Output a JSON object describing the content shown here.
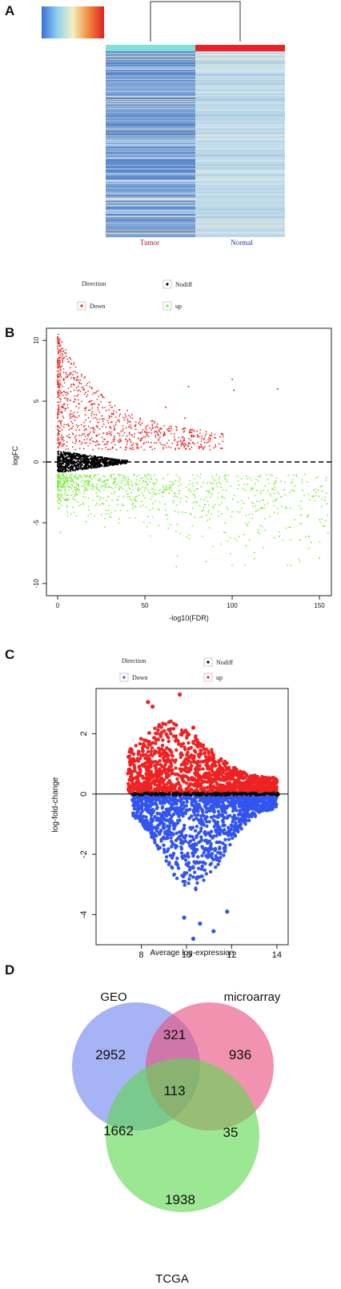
{
  "panels": {
    "a": {
      "letter": "A"
    },
    "b": {
      "letter": "B"
    },
    "c": {
      "letter": "C"
    },
    "d": {
      "letter": "D"
    }
  },
  "colors": {
    "tumor_bar": "#7fe0d8",
    "normal_bar": "#ee2222",
    "up_red": "#ee2222",
    "down_green": "#77ee33",
    "nodiff_black": "#000000",
    "down_blue": "#3355ee",
    "venn_geo": "#6f84ee",
    "venn_micro": "#e8507f",
    "venn_tcga": "#5fd84f"
  },
  "chart_data": [
    {
      "type": "heatmap",
      "panel": "A",
      "groups": [
        "Tumor",
        "Normal"
      ],
      "legend": {
        "title": "Direction",
        "items": [
          "Nodiff",
          "Down",
          "up"
        ]
      }
    },
    {
      "type": "scatter",
      "panel": "B",
      "xlabel": "-log10(FDR)",
      "ylabel": "logFC",
      "xlim": [
        0,
        155
      ],
      "ylim": [
        -11,
        11
      ],
      "xticks": [
        "0",
        "50",
        "100",
        "150"
      ],
      "yticks": [
        "10",
        "5",
        "0",
        "-5",
        "-10"
      ],
      "hline": 0,
      "series": [
        {
          "name": "up",
          "color": "#ee2222"
        },
        {
          "name": "Down",
          "color": "#77ee33"
        },
        {
          "name": "Nodiff",
          "color": "#000000"
        }
      ],
      "highlights": [
        {
          "x": 100,
          "y": 6.8
        },
        {
          "x": 126,
          "y": 6
        },
        {
          "x": 75,
          "y": 6.2
        },
        {
          "x": 101,
          "y": 5.9
        },
        {
          "x": 73,
          "y": 3.6
        },
        {
          "x": 62,
          "y": 4.5
        },
        {
          "x": 150,
          "y": -7.9
        },
        {
          "x": 153,
          "y": -5.3
        },
        {
          "x": 127,
          "y": -6.1
        },
        {
          "x": 108,
          "y": -6.9
        },
        {
          "x": 68,
          "y": -8.6
        },
        {
          "x": 85,
          "y": -8.2
        }
      ]
    },
    {
      "type": "scatter",
      "panel": "C",
      "legend": {
        "title": "Direction",
        "items": [
          "Nodiff",
          "Down",
          "up"
        ]
      },
      "xlabel": "Average log-expression",
      "ylabel": "log-fold-change",
      "xlim": [
        6,
        14.5
      ],
      "ylim": [
        -5,
        3.5
      ],
      "xticks": [
        "8",
        "10",
        "12",
        "14"
      ],
      "yticks": [
        "2",
        "0",
        "-2",
        "-4"
      ],
      "hline": 0,
      "series": [
        {
          "name": "up",
          "color": "#ee2222"
        },
        {
          "name": "Down",
          "color": "#3355ee"
        },
        {
          "name": "Nodiff",
          "color": "#000000"
        }
      ],
      "highlights": [
        {
          "x": 9.7,
          "y": 3.3
        },
        {
          "x": 8.3,
          "y": 3.05
        },
        {
          "x": 8.5,
          "y": 2.9
        },
        {
          "x": 10.3,
          "y": 2.2
        },
        {
          "x": 9.9,
          "y": -4.1
        },
        {
          "x": 10.6,
          "y": -4.3
        },
        {
          "x": 10.3,
          "y": -4.8
        },
        {
          "x": 11.2,
          "y": -4.55
        },
        {
          "x": 11.8,
          "y": -3.9
        }
      ]
    },
    {
      "type": "venn",
      "panel": "D",
      "sets": [
        "GEO",
        "microarray",
        "TCGA"
      ],
      "regions": [
        {
          "sets": [
            "GEO"
          ],
          "value": 2952
        },
        {
          "sets": [
            "microarray"
          ],
          "value": 936
        },
        {
          "sets": [
            "TCGA"
          ],
          "value": 1938
        },
        {
          "sets": [
            "GEO",
            "microarray"
          ],
          "value": 321
        },
        {
          "sets": [
            "GEO",
            "TCGA"
          ],
          "value": 1662
        },
        {
          "sets": [
            "microarray",
            "TCGA"
          ],
          "value": 35
        },
        {
          "sets": [
            "GEO",
            "microarray",
            "TCGA"
          ],
          "value": 113
        }
      ]
    }
  ]
}
